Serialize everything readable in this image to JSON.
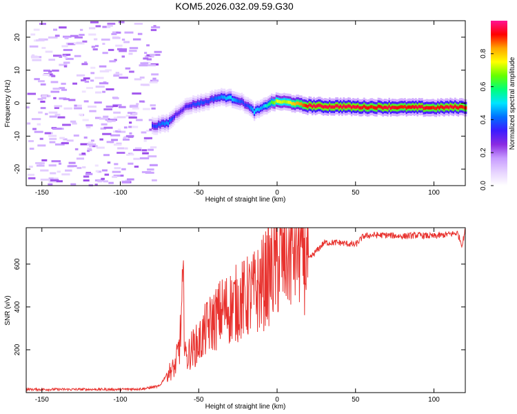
{
  "figure_title": "KOM5.2026.032.09.59.G30",
  "colors": {
    "snr_line": "#e8322e",
    "spectrum_ramp": [
      "#ffffff",
      "#e6d2ff",
      "#c79bff",
      "#8a2be2",
      "#3b1bff",
      "#0070ff",
      "#00e5ff",
      "#00ff7a",
      "#66ff00",
      "#ffff00",
      "#ffa500",
      "#ff0000",
      "#ff1493"
    ]
  },
  "chart_data": [
    {
      "type": "heatmap",
      "title": "",
      "xlabel": "Height of straight line (km)",
      "ylabel": "Frequency (Hz)",
      "xlim": [
        -160,
        120
      ],
      "ylim": [
        -25,
        25
      ],
      "xticks": [
        -150,
        -100,
        -50,
        0,
        50,
        100
      ],
      "yticks": [
        -20,
        -10,
        0,
        10,
        20
      ],
      "colorbar": {
        "label": "Normalized spectral amplitude",
        "range": [
          0,
          1
        ],
        "ticks": [
          "0.0",
          "0.2",
          "0.4",
          "0.6",
          "0.8"
        ],
        "tick_values": [
          0,
          0.2,
          0.4,
          0.6,
          0.8
        ]
      },
      "signal_track": {
        "description_points_height_km": [
          -80,
          -75,
          -70,
          -65,
          -60,
          -55,
          -50,
          -45,
          -40,
          -35,
          -30,
          -25,
          -20,
          -15,
          -10,
          -5,
          0,
          5,
          10,
          15,
          20,
          25,
          30,
          40,
          50,
          60,
          70,
          80,
          90,
          100,
          110,
          120
        ],
        "frequency_hz": [
          -7,
          -6.5,
          -6,
          -3.5,
          -1.5,
          -0.5,
          0,
          0.5,
          1.5,
          1.8,
          1.5,
          0.8,
          -0.5,
          -2.5,
          -1.5,
          0,
          0.5,
          0.3,
          0,
          -0.5,
          -0.8,
          -0.9,
          -1,
          -1,
          -1.2,
          -1.2,
          -1.2,
          -1.3,
          -1.3,
          -1.4,
          -1.2,
          -1.2
        ],
        "amplitude": [
          0.35,
          0.4,
          0.45,
          0.3,
          0.3,
          0.35,
          0.4,
          0.35,
          0.4,
          0.45,
          0.5,
          0.4,
          0.35,
          0.5,
          0.45,
          0.6,
          0.75,
          0.7,
          0.8,
          0.85,
          0.95,
          0.95,
          0.95,
          0.95,
          0.95,
          0.9,
          0.95,
          0.9,
          0.95,
          0.9,
          0.95,
          0.9
        ]
      }
    },
    {
      "type": "line",
      "title": "",
      "xlabel": "Height of straight line (km)",
      "ylabel": "SNR (v/v)",
      "xlim": [
        -160,
        120
      ],
      "ylim": [
        0,
        770
      ],
      "xticks": [
        -150,
        -100,
        -50,
        0,
        50,
        100
      ],
      "yticks": [
        200,
        400,
        600
      ],
      "series": [
        {
          "name": "SNR",
          "x": [
            -160,
            -140,
            -120,
            -100,
            -85,
            -75,
            -70,
            -65,
            -62,
            -60,
            -58,
            -55,
            -50,
            -45,
            -40,
            -35,
            -30,
            -25,
            -20,
            -15,
            -10,
            -5,
            0,
            5,
            10,
            15,
            20,
            25,
            30,
            40,
            50,
            55,
            60,
            70,
            80,
            90,
            100,
            110,
            115,
            118,
            120
          ],
          "values": [
            15,
            15,
            15,
            15,
            18,
            30,
            90,
            120,
            230,
            470,
            150,
            200,
            230,
            300,
            340,
            380,
            400,
            420,
            440,
            460,
            500,
            560,
            600,
            640,
            680,
            690,
            620,
            660,
            700,
            700,
            690,
            730,
            735,
            735,
            730,
            735,
            730,
            740,
            745,
            690,
            760
          ]
        }
      ]
    }
  ]
}
